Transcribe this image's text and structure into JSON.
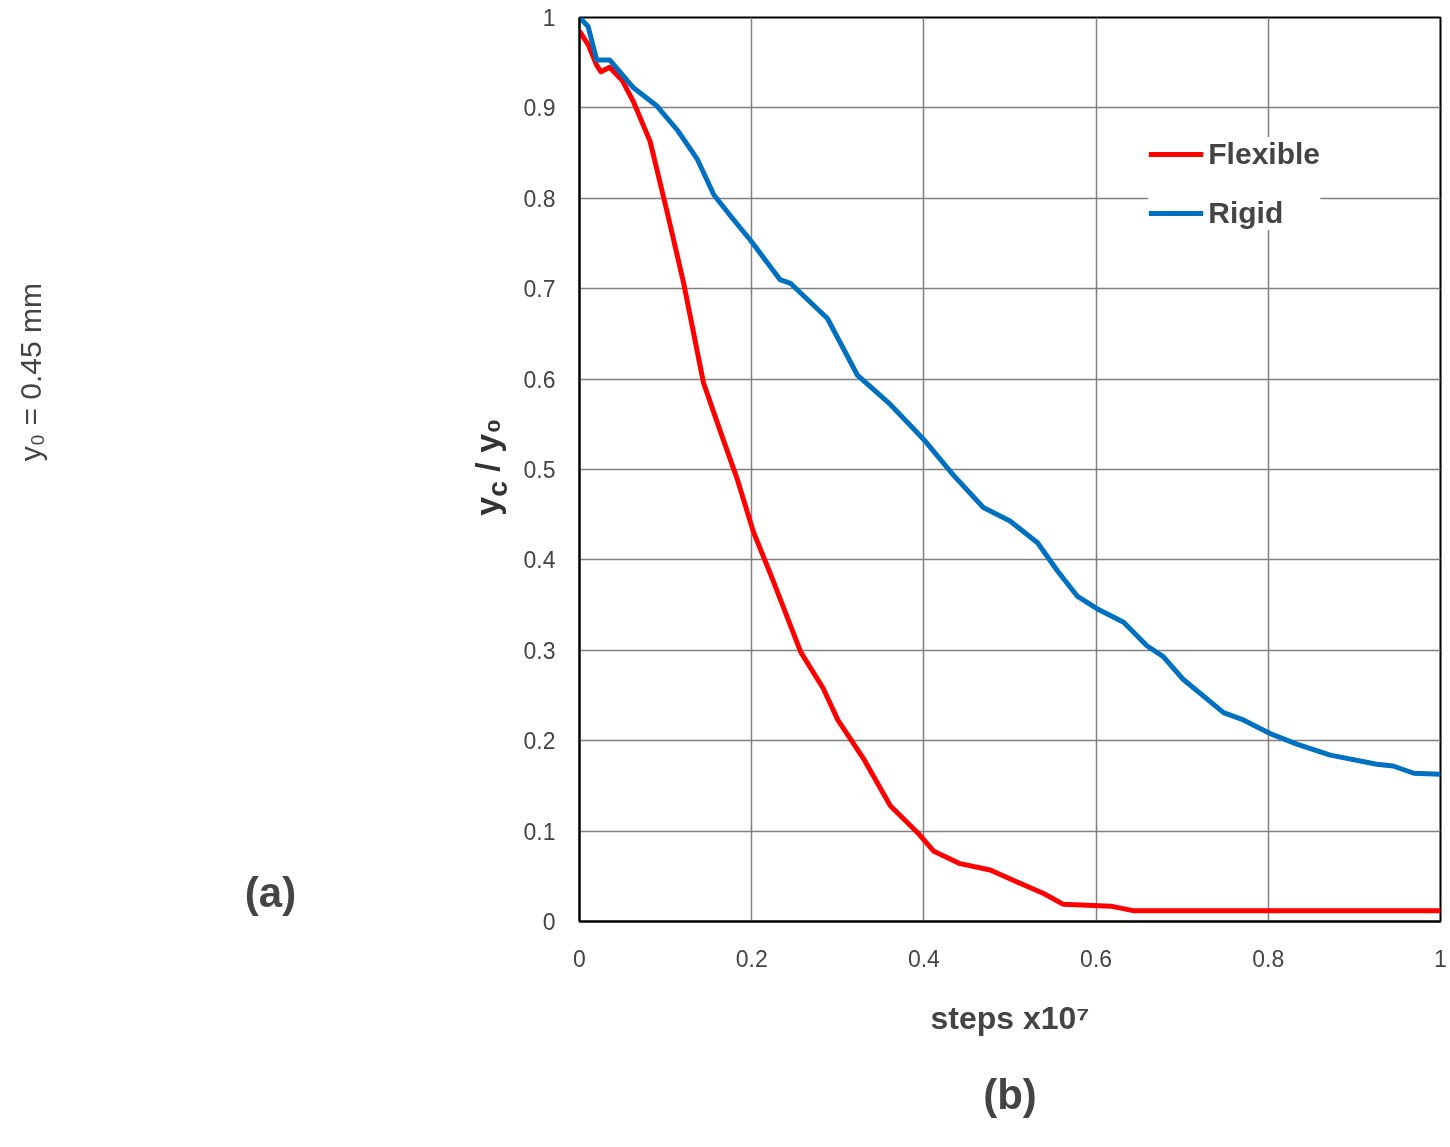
{
  "chart_data": [
    {
      "type": "other",
      "annotations": [
        "y₀ = 0.45 mm",
        "(a)"
      ]
    },
    {
      "type": "line",
      "xlabel": "steps x10⁷",
      "ylabel": "y$_{c}$ / y₀",
      "annotations": [
        "(b)"
      ],
      "xlim": [
        0,
        1
      ],
      "ylim": [
        0,
        1
      ],
      "xticks": [
        0,
        0.2,
        0.4,
        0.6,
        0.8,
        1
      ],
      "yticks": [
        0,
        0.1,
        0.2,
        0.3,
        0.4,
        0.5,
        0.6,
        0.7,
        0.8,
        0.9,
        1
      ],
      "grid": true,
      "legend": "top right",
      "marker": "none",
      "line_style": "solid",
      "series": [
        {
          "name": "Flexible",
          "color": "#ff0000",
          "x": [
            0,
            0.01,
            0.02,
            0.025,
            0.035,
            0.05,
            0.063,
            0.082,
            0.102,
            0.121,
            0.144,
            0.164,
            0.183,
            0.202,
            0.222,
            0.257,
            0.283,
            0.3,
            0.33,
            0.361,
            0.393,
            0.411,
            0.442,
            0.477,
            0.505,
            0.539,
            0.562,
            0.617,
            0.643,
            0.7,
            0.8,
            0.9,
            1
          ],
          "values": [
            0.985,
            0.97,
            0.947,
            0.94,
            0.945,
            0.93,
            0.906,
            0.863,
            0.784,
            0.706,
            0.596,
            0.541,
            0.49,
            0.431,
            0.384,
            0.298,
            0.258,
            0.223,
            0.18,
            0.128,
            0.098,
            0.078,
            0.064,
            0.057,
            0.045,
            0.031,
            0.019,
            0.017,
            0.012,
            0.012,
            0.012,
            0.012,
            0.012
          ]
        },
        {
          "name": "Rigid",
          "color": "#0070c0",
          "x": [
            0,
            0.01,
            0.02,
            0.035,
            0.063,
            0.09,
            0.114,
            0.137,
            0.156,
            0.175,
            0.199,
            0.233,
            0.245,
            0.288,
            0.323,
            0.361,
            0.381,
            0.4,
            0.434,
            0.469,
            0.5,
            0.532,
            0.555,
            0.578,
            0.601,
            0.632,
            0.659,
            0.678,
            0.701,
            0.748,
            0.771,
            0.802,
            0.834,
            0.872,
            0.926,
            0.945,
            0.969,
            1
          ],
          "values": [
            1.0,
            0.99,
            0.953,
            0.953,
            0.922,
            0.902,
            0.875,
            0.843,
            0.804,
            0.781,
            0.753,
            0.71,
            0.706,
            0.667,
            0.604,
            0.572,
            0.552,
            0.533,
            0.494,
            0.458,
            0.443,
            0.419,
            0.388,
            0.36,
            0.346,
            0.331,
            0.305,
            0.293,
            0.268,
            0.231,
            0.223,
            0.208,
            0.196,
            0.184,
            0.174,
            0.172,
            0.164,
            0.163
          ]
        }
      ]
    }
  ]
}
